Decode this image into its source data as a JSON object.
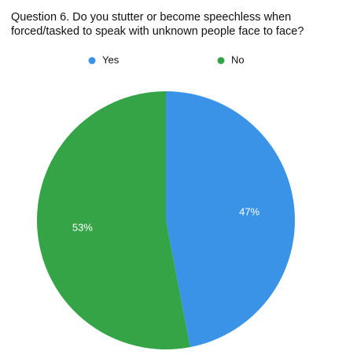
{
  "chart_data": {
    "type": "pie",
    "title": "Question 6. Do you stutter or become speechless when forced/tasked to speak with unknown people face to face?",
    "categories": [
      "Yes",
      "No"
    ],
    "values": [
      47,
      53
    ],
    "value_labels": [
      "47%",
      "53%"
    ],
    "colors": [
      "#3a93e6",
      "#35a447"
    ],
    "legend": "top"
  }
}
